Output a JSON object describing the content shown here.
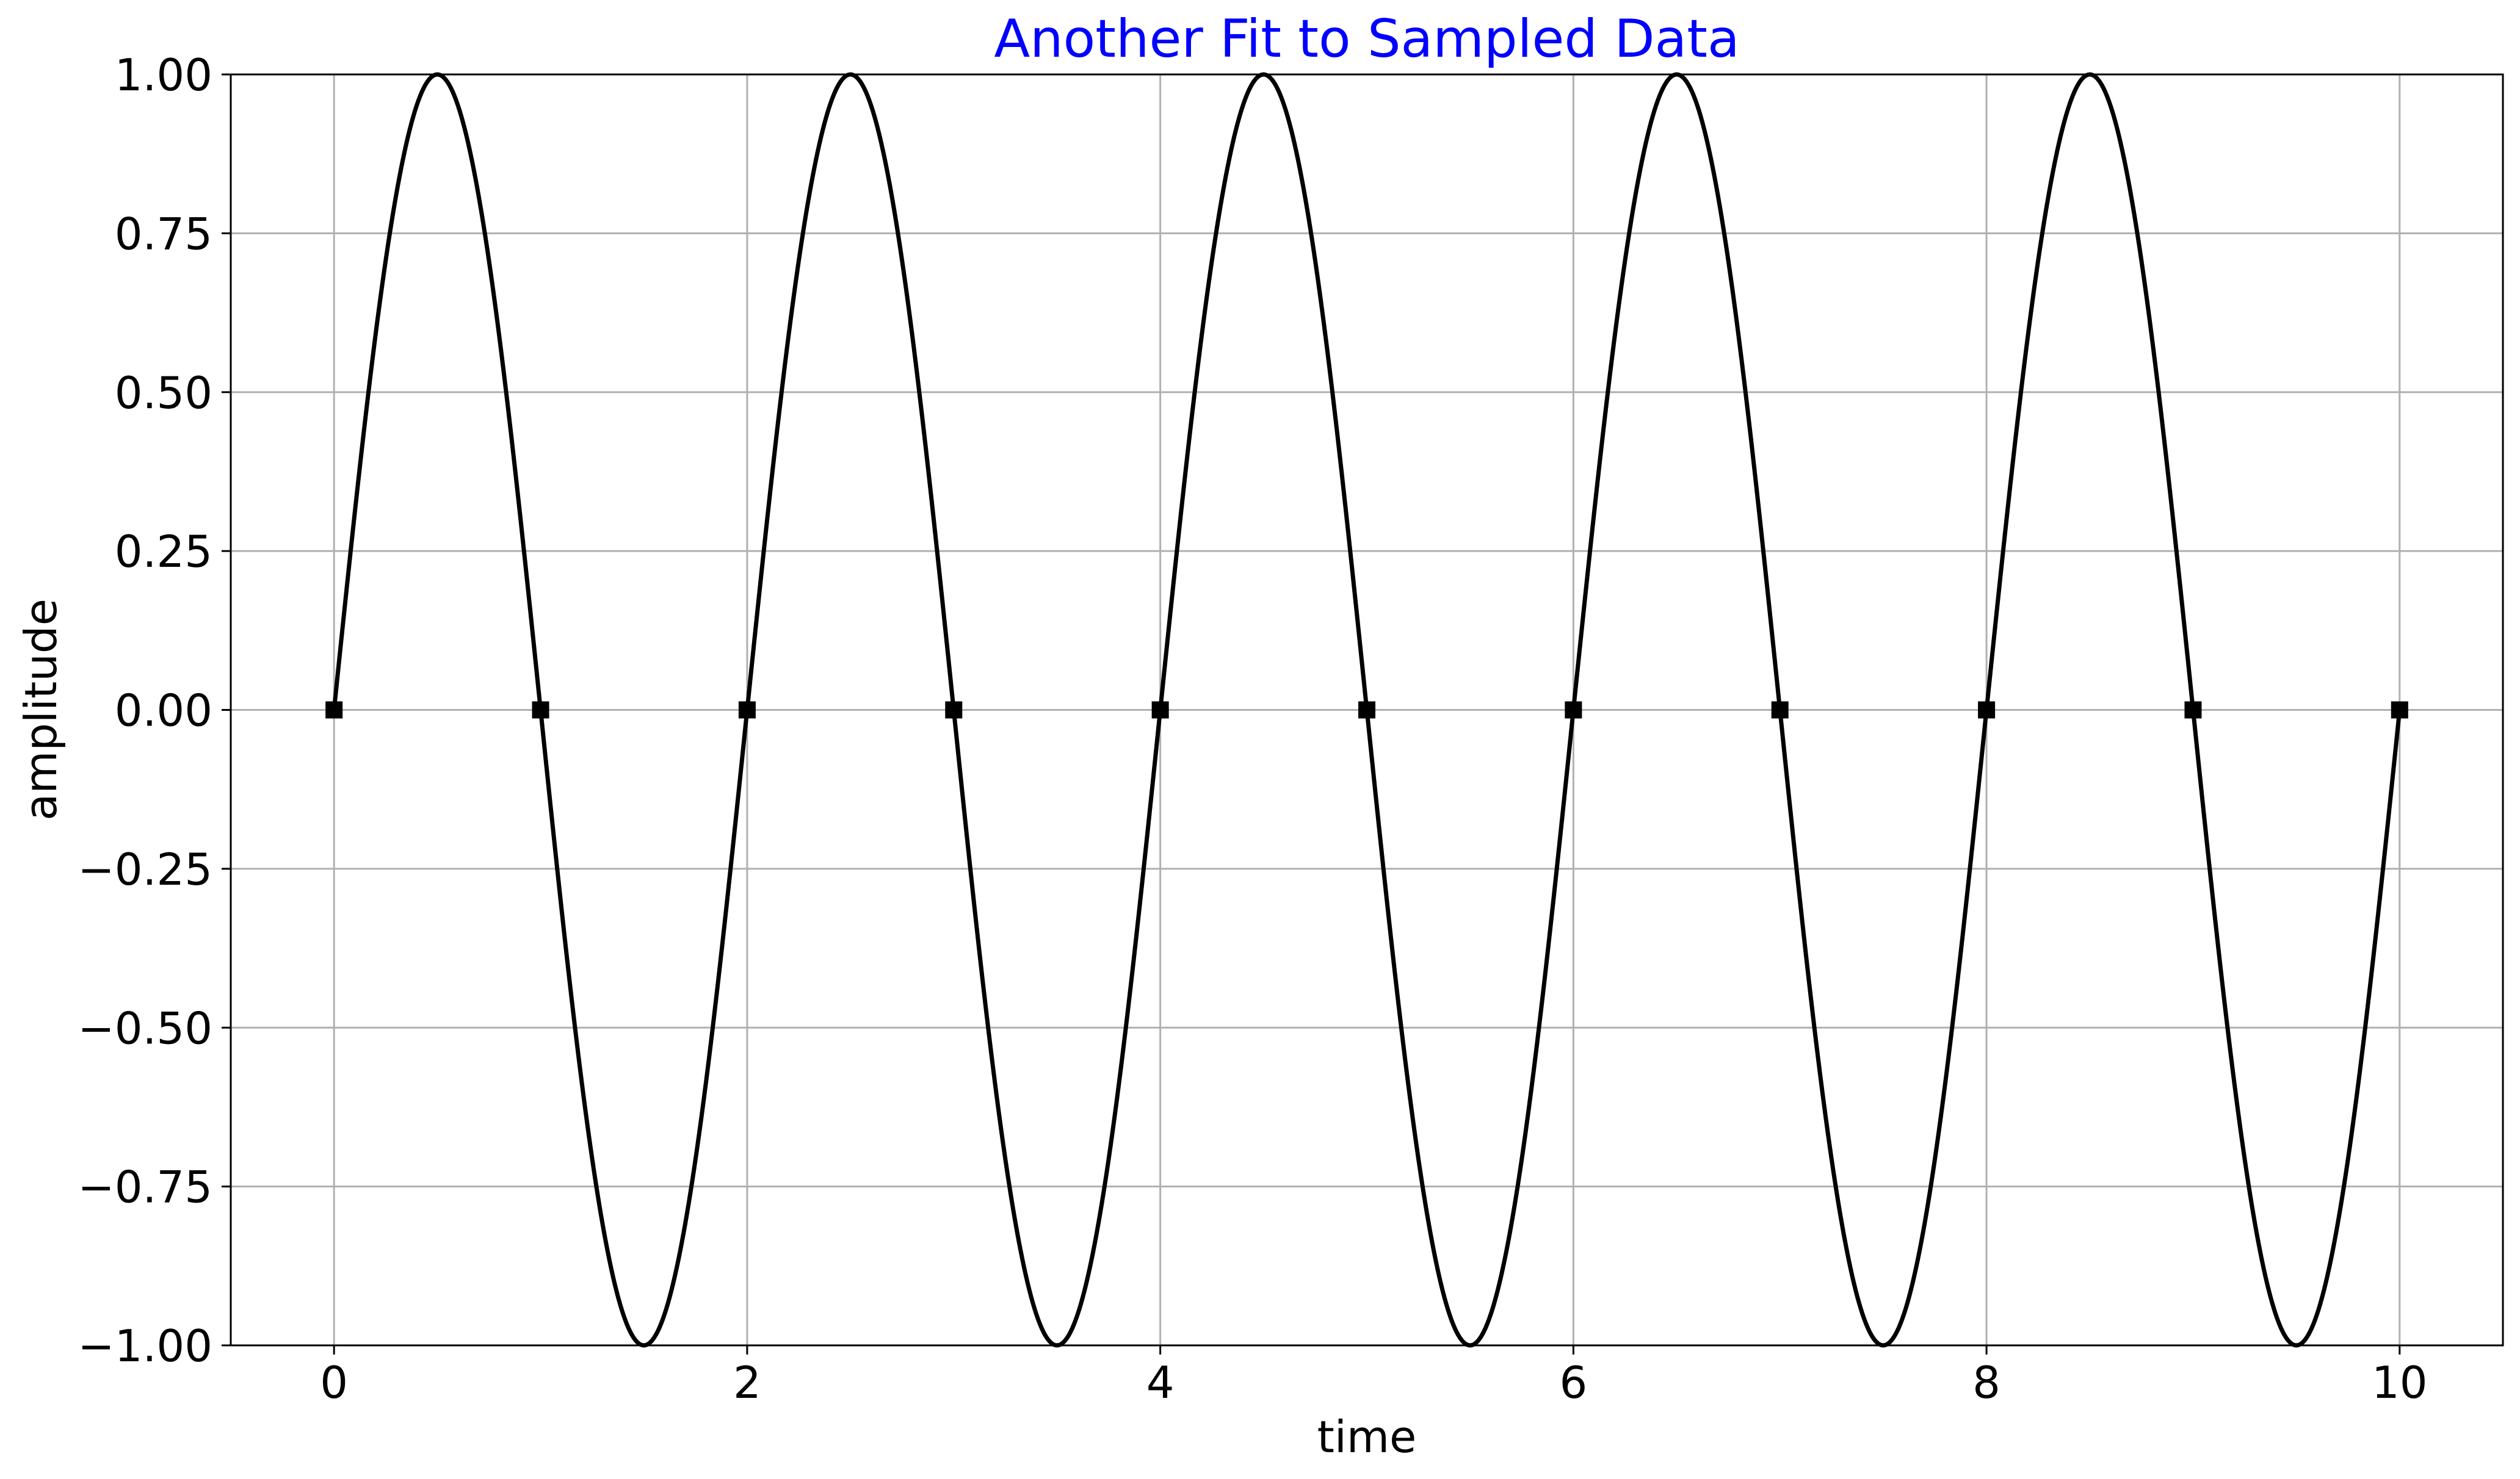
{
  "chart_data": {
    "type": "line",
    "title": "Another Fit to Sampled Data",
    "title_color": "#0000ff",
    "xlabel": "time",
    "ylabel": "amplitude",
    "xlim": [
      -0.5,
      10.5
    ],
    "ylim": [
      -1.0,
      1.0
    ],
    "grid": true,
    "grid_color": "#b0b0b0",
    "line_color": "#000000",
    "x_ticks": [
      0,
      2,
      4,
      6,
      8,
      10
    ],
    "x_tick_labels": [
      "0",
      "2",
      "4",
      "6",
      "8",
      "10"
    ],
    "y_ticks": [
      1.0,
      0.75,
      0.5,
      0.25,
      0.0,
      -0.25,
      -0.5,
      -0.75,
      -1.0
    ],
    "y_tick_labels": [
      "1.00",
      "0.75",
      "0.50",
      "0.25",
      "0.00",
      "−0.25",
      "−0.50",
      "−0.75",
      "−1.00"
    ],
    "series": [
      {
        "style": "line",
        "x_range": [
          0,
          10
        ],
        "function": "sine",
        "frequency_hz": 0.5,
        "amplitude": 1.0,
        "phase": 0
      },
      {
        "style": "markers",
        "marker": "square",
        "x": [
          0,
          1,
          2,
          3,
          4,
          5,
          6,
          7,
          8,
          9,
          10
        ],
        "y": [
          0,
          0,
          0,
          0,
          0,
          0,
          0,
          0,
          0,
          0,
          0
        ]
      }
    ]
  }
}
